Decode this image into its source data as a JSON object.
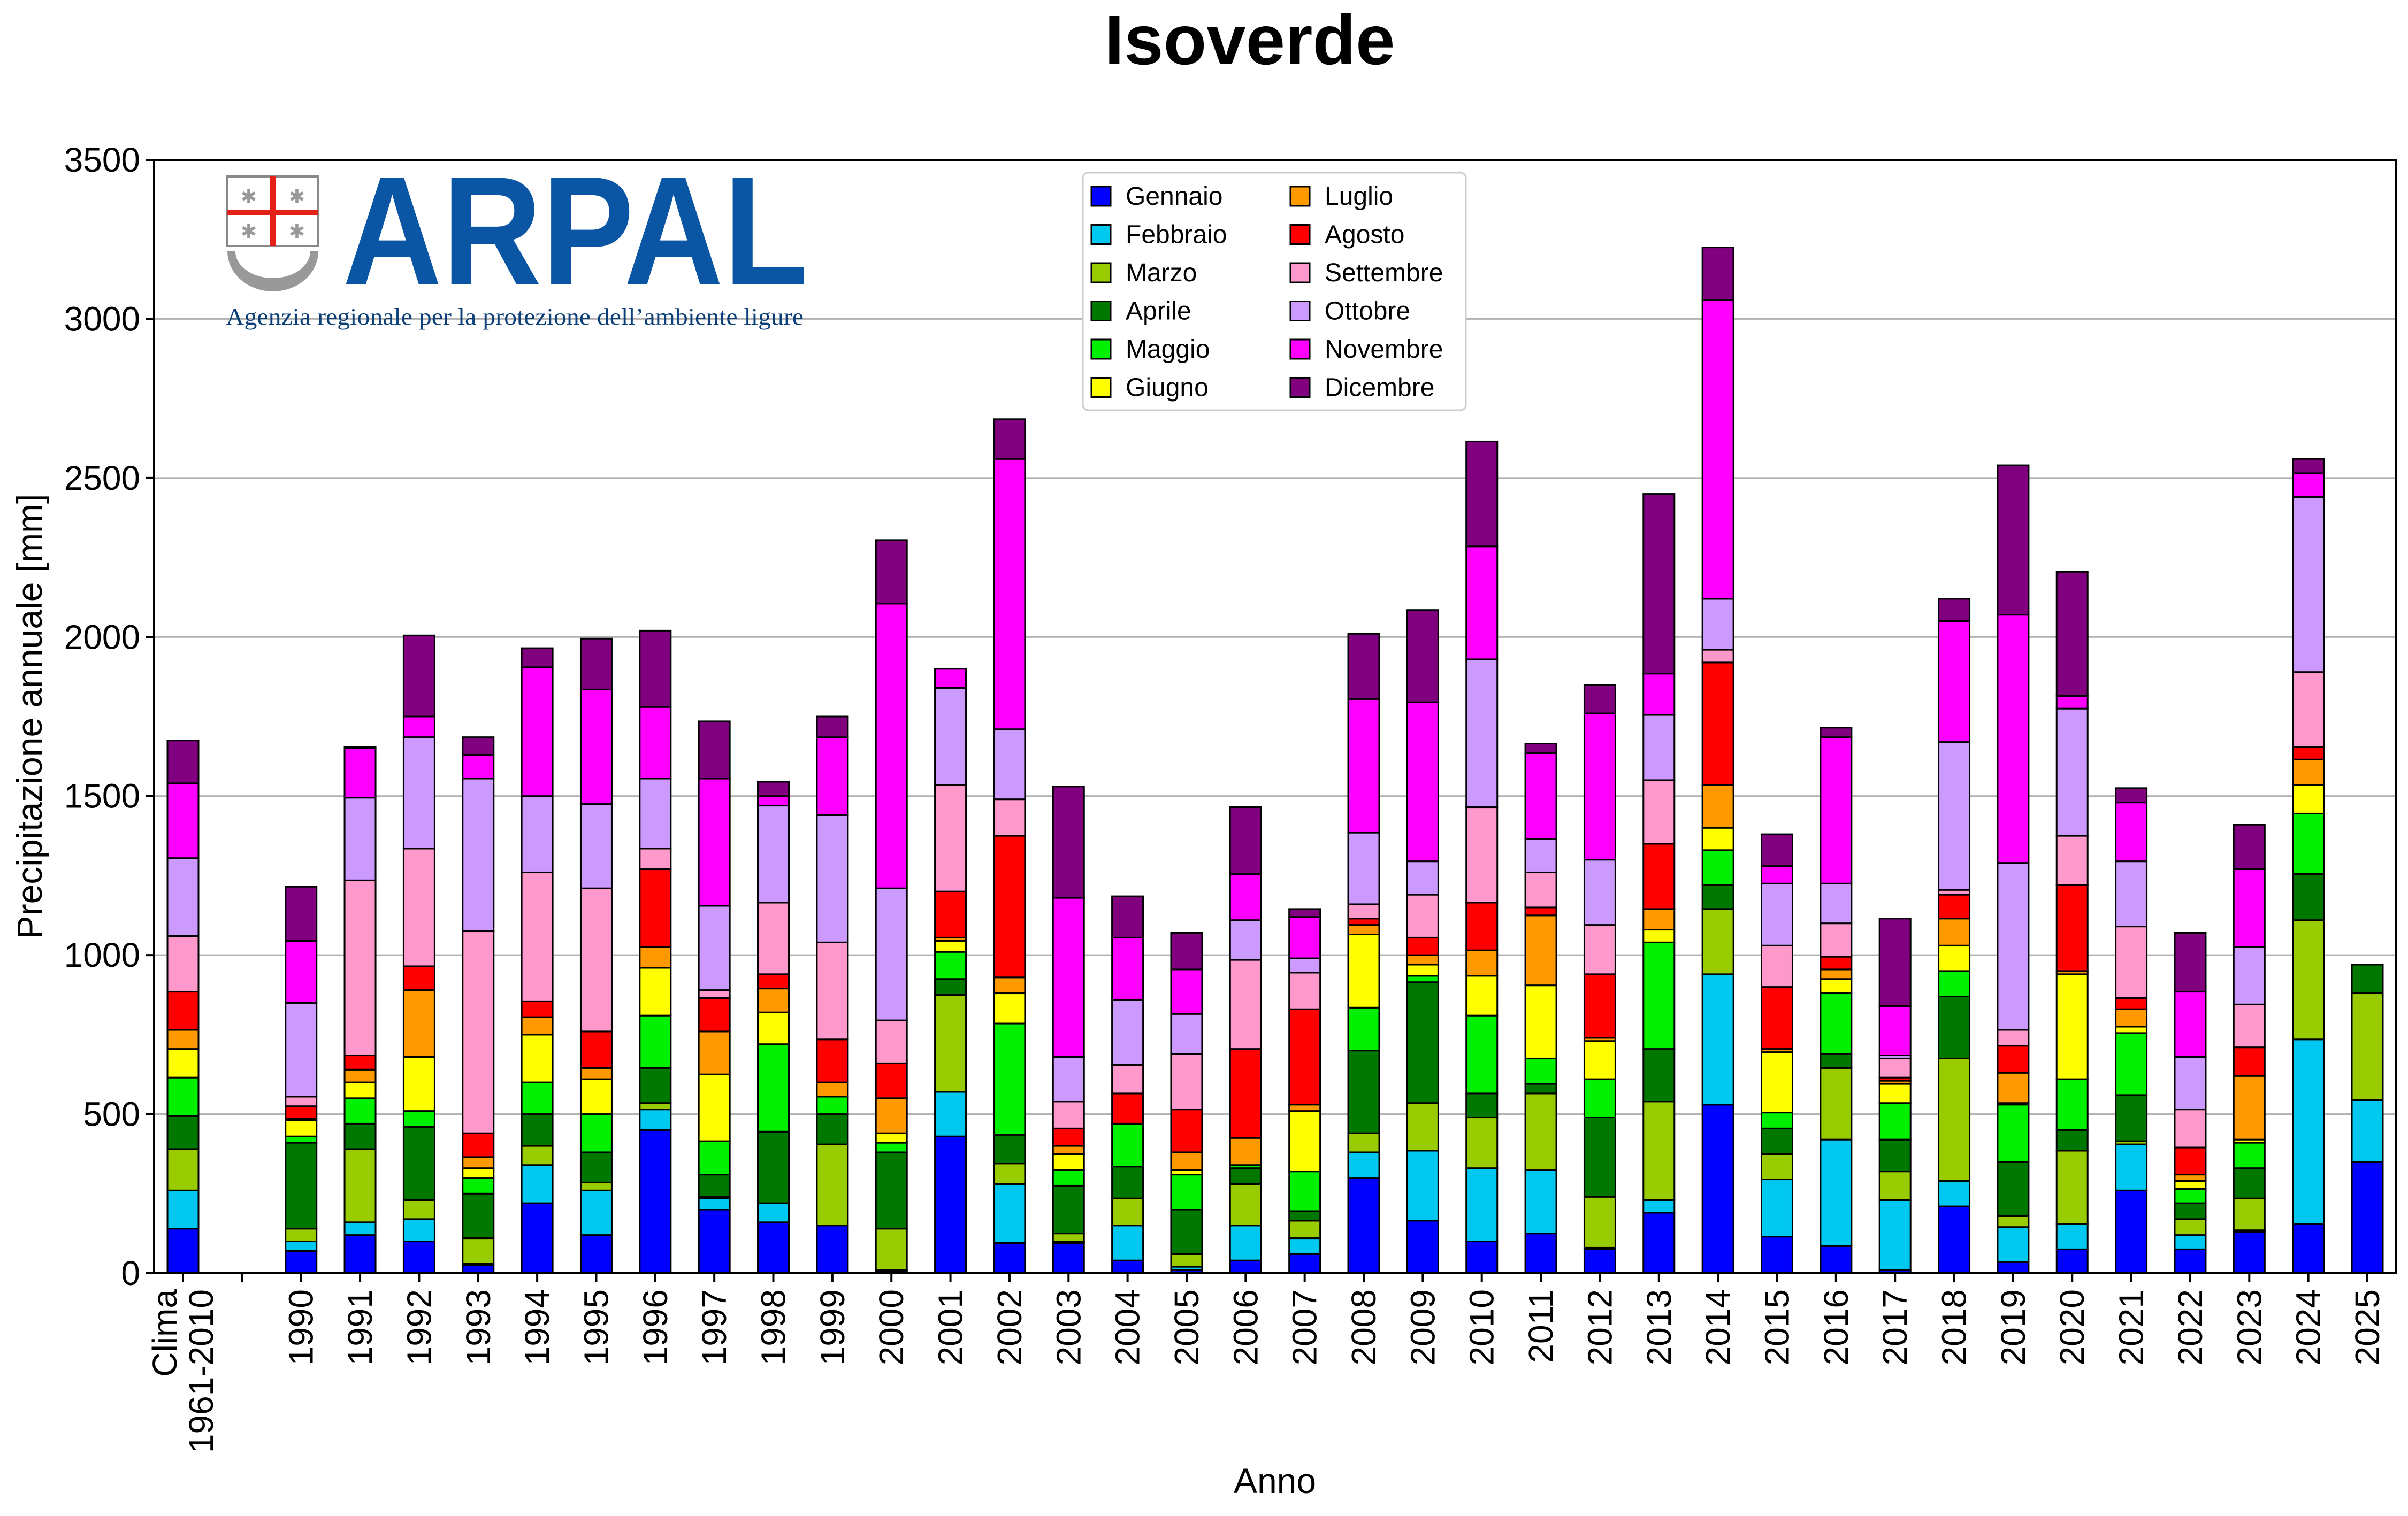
{
  "logo": {
    "name": "ARPAL",
    "tagline": "Agenzia regionale per la protezione dell’ambiente ligure",
    "color": "#0b56a4"
  },
  "chart_data": {
    "type": "bar",
    "stacked": true,
    "title": "Isoverde",
    "xlabel": "Anno",
    "ylabel": "Precipitazione annuale [mm]",
    "ylim": [
      0,
      3500
    ],
    "yticks": [
      0,
      500,
      1000,
      1500,
      2000,
      2500,
      3000,
      3500
    ],
    "grid": "horizontal",
    "legend_position": "top-center",
    "categories": [
      "Clima\n1961-2010",
      "",
      "1990",
      "1991",
      "1992",
      "1993",
      "1994",
      "1995",
      "1996",
      "1997",
      "1998",
      "1999",
      "2000",
      "2001",
      "2002",
      "2003",
      "2004",
      "2005",
      "2006",
      "2007",
      "2008",
      "2009",
      "2010",
      "2011",
      "2012",
      "2013",
      "2014",
      "2015",
      "2016",
      "2017",
      "2018",
      "2019",
      "2020",
      "2021",
      "2022",
      "2023",
      "2024",
      "2025"
    ],
    "series": [
      {
        "name": "Gennaio",
        "color": "#0000ff",
        "values": [
          140,
          0,
          70,
          120,
          100,
          25,
          220,
          120,
          450,
          200,
          160,
          150,
          5,
          430,
          95,
          95,
          40,
          10,
          40,
          60,
          300,
          165,
          100,
          125,
          75,
          190,
          530,
          115,
          85,
          10,
          210,
          35,
          75,
          260,
          75,
          130,
          155,
          350
        ]
      },
      {
        "name": "Febbraio",
        "color": "#00c8f0",
        "values": [
          120,
          0,
          30,
          40,
          70,
          5,
          120,
          140,
          65,
          35,
          60,
          0,
          5,
          140,
          185,
          5,
          110,
          10,
          110,
          50,
          80,
          220,
          230,
          200,
          5,
          40,
          410,
          180,
          335,
          220,
          80,
          110,
          80,
          145,
          45,
          5,
          580,
          195
        ]
      },
      {
        "name": "Marzo",
        "color": "#99cc00",
        "values": [
          130,
          0,
          40,
          230,
          60,
          80,
          60,
          25,
          20,
          5,
          0,
          255,
          130,
          305,
          65,
          25,
          85,
          40,
          130,
          55,
          60,
          150,
          160,
          240,
          160,
          310,
          205,
          80,
          225,
          90,
          385,
          35,
          230,
          10,
          50,
          100,
          375,
          335
        ]
      },
      {
        "name": "Aprile",
        "color": "#007800",
        "values": [
          105,
          0,
          270,
          80,
          230,
          140,
          100,
          95,
          110,
          70,
          225,
          95,
          240,
          50,
          90,
          150,
          100,
          140,
          50,
          30,
          260,
          380,
          75,
          30,
          250,
          165,
          75,
          80,
          45,
          100,
          195,
          170,
          65,
          145,
          50,
          95,
          145,
          90
        ]
      },
      {
        "name": "Maggio",
        "color": "#00f000",
        "values": [
          120,
          0,
          20,
          80,
          50,
          50,
          100,
          120,
          165,
          105,
          275,
          55,
          30,
          85,
          350,
          50,
          135,
          110,
          10,
          125,
          135,
          20,
          245,
          80,
          120,
          335,
          110,
          50,
          190,
          115,
          80,
          180,
          160,
          195,
          45,
          80,
          190,
          0
        ]
      },
      {
        "name": "Giugno",
        "color": "#ffff00",
        "values": [
          90,
          0,
          50,
          50,
          170,
          30,
          150,
          110,
          150,
          210,
          100,
          0,
          30,
          35,
          95,
          50,
          0,
          15,
          0,
          190,
          230,
          35,
          125,
          230,
          120,
          40,
          70,
          190,
          45,
          60,
          80,
          5,
          330,
          20,
          25,
          10,
          90,
          0
        ]
      },
      {
        "name": "Luglio",
        "color": "#ff9900",
        "values": [
          60,
          0,
          5,
          40,
          210,
          35,
          55,
          35,
          65,
          135,
          75,
          45,
          110,
          10,
          50,
          25,
          0,
          55,
          85,
          20,
          30,
          30,
          80,
          220,
          10,
          65,
          135,
          10,
          30,
          10,
          85,
          95,
          10,
          55,
          20,
          200,
          80,
          0
        ]
      },
      {
        "name": "Agosto",
        "color": "#ff0000",
        "values": [
          120,
          0,
          40,
          45,
          75,
          75,
          50,
          115,
          245,
          105,
          45,
          135,
          110,
          145,
          445,
          55,
          95,
          135,
          280,
          300,
          20,
          55,
          150,
          25,
          200,
          205,
          385,
          195,
          40,
          10,
          75,
          85,
          270,
          35,
          85,
          90,
          40,
          0
        ]
      },
      {
        "name": "Settembre",
        "color": "#ff99cc",
        "values": [
          175,
          0,
          30,
          550,
          370,
          635,
          405,
          450,
          65,
          25,
          225,
          305,
          135,
          335,
          115,
          85,
          90,
          175,
          280,
          115,
          45,
          135,
          300,
          110,
          155,
          200,
          40,
          130,
          105,
          60,
          15,
          50,
          155,
          225,
          120,
          135,
          235,
          0
        ]
      },
      {
        "name": "Ottobre",
        "color": "#cc99ff",
        "values": [
          245,
          0,
          295,
          260,
          350,
          480,
          240,
          265,
          220,
          265,
          305,
          400,
          415,
          305,
          220,
          140,
          205,
          125,
          125,
          45,
          225,
          105,
          465,
          105,
          205,
          205,
          160,
          195,
          125,
          10,
          465,
          525,
          400,
          205,
          165,
          180,
          550,
          0
        ]
      },
      {
        "name": "Novembre",
        "color": "#ff00ff",
        "values": [
          235,
          0,
          195,
          155,
          65,
          75,
          405,
          360,
          225,
          400,
          30,
          245,
          895,
          60,
          850,
          500,
          195,
          140,
          145,
          130,
          420,
          500,
          355,
          270,
          460,
          130,
          940,
          55,
          460,
          155,
          380,
          780,
          40,
          185,
          205,
          245,
          75,
          0
        ]
      },
      {
        "name": "Dicembre",
        "color": "#800080",
        "values": [
          135,
          0,
          170,
          5,
          255,
          55,
          60,
          160,
          240,
          180,
          45,
          65,
          200,
          0,
          125,
          350,
          130,
          115,
          210,
          25,
          205,
          290,
          330,
          30,
          90,
          565,
          165,
          100,
          30,
          275,
          70,
          470,
          390,
          45,
          185,
          140,
          45,
          0
        ]
      }
    ]
  }
}
